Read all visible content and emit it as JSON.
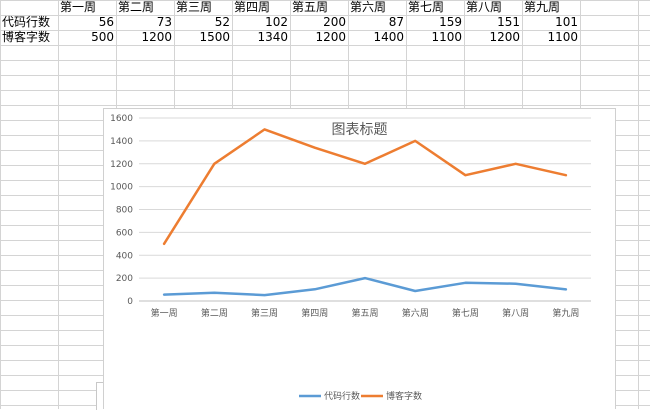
{
  "sheet": {
    "header_row": [
      "",
      "第一周",
      "第二周",
      "第三周",
      "第四周",
      "第五周",
      "第六周",
      "第七周",
      "第八周",
      "第九周"
    ],
    "rows": [
      {
        "label": "代码行数",
        "values": [
          "56",
          "73",
          "52",
          "102",
          "200",
          "87",
          "159",
          "151",
          "101"
        ]
      },
      {
        "label": "博客字数",
        "values": [
          "500",
          "1200",
          "1500",
          "1340",
          "1200",
          "1400",
          "1100",
          "1200",
          "1100"
        ]
      }
    ]
  },
  "chart_data": {
    "type": "line",
    "title": "图表标题",
    "categories": [
      "第一周",
      "第二周",
      "第三周",
      "第四周",
      "第五周",
      "第六周",
      "第七周",
      "第八周",
      "第九周"
    ],
    "series": [
      {
        "name": "代码行数",
        "color": "#5b9bd5",
        "values": [
          56,
          73,
          52,
          102,
          200,
          87,
          159,
          151,
          101
        ]
      },
      {
        "name": "博客字数",
        "color": "#ed7d31",
        "values": [
          500,
          1200,
          1500,
          1340,
          1200,
          1400,
          1100,
          1200,
          1100
        ]
      }
    ],
    "ylim": [
      0,
      1600
    ],
    "yticks": [
      0,
      200,
      400,
      600,
      800,
      1000,
      1200,
      1400,
      1600
    ],
    "grid": true,
    "legend": "bottom"
  }
}
